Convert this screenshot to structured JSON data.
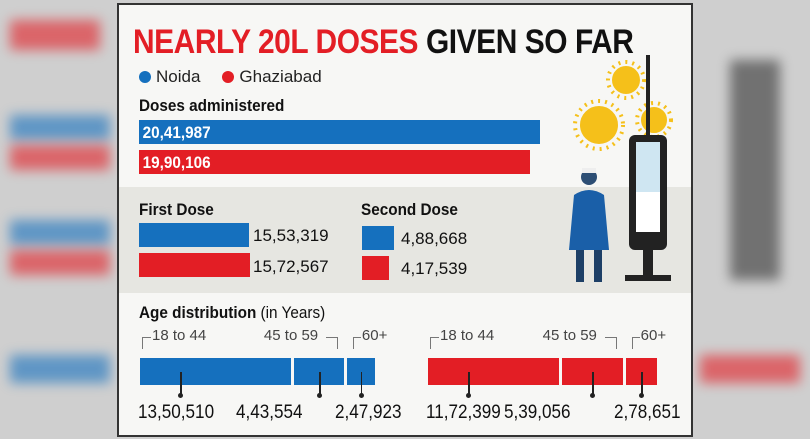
{
  "title": {
    "part1": "NEARLY 20L DOSES",
    "part2": "GIVEN SO FAR"
  },
  "colors": {
    "noida": "#1570be",
    "ghaziabad": "#e31e25"
  },
  "icons": [
    "virus-icon",
    "syringe-icon",
    "health-worker-icon"
  ],
  "chart_data": {
    "type": "bar",
    "legend": {
      "placement": "top-left",
      "entries": [
        "Noida",
        "Ghaziabad"
      ]
    },
    "doses_administered": {
      "title": "Doses administered",
      "values": {
        "Noida": 2041987,
        "Ghaziabad": 1990106
      },
      "labels": {
        "Noida": "20,41,987",
        "Ghaziabad": "19,90,106"
      }
    },
    "first_dose": {
      "title": "First Dose",
      "values": {
        "Noida": 1553319,
        "Ghaziabad": 1572567
      },
      "labels": {
        "Noida": "15,53,319",
        "Ghaziabad": "15,72,567"
      }
    },
    "second_dose": {
      "title": "Second Dose",
      "values": {
        "Noida": 488668,
        "Ghaziabad": 417539
      },
      "labels": {
        "Noida": "4,88,668",
        "Ghaziabad": "4,17,539"
      }
    },
    "age_distribution": {
      "title": "Age distribution",
      "unit": "(in Years)",
      "categories": [
        "18 to 44",
        "45 to 59",
        "60+"
      ],
      "series": [
        {
          "name": "Noida",
          "values": [
            1350510,
            443554,
            247923
          ],
          "labels": [
            "13,50,510",
            "4,43,554",
            "2,47,923"
          ]
        },
        {
          "name": "Ghaziabad",
          "values": [
            1172399,
            539056,
            278651
          ],
          "labels": [
            "11,72,399",
            "5,39,056",
            "2,78,651"
          ]
        }
      ]
    }
  }
}
